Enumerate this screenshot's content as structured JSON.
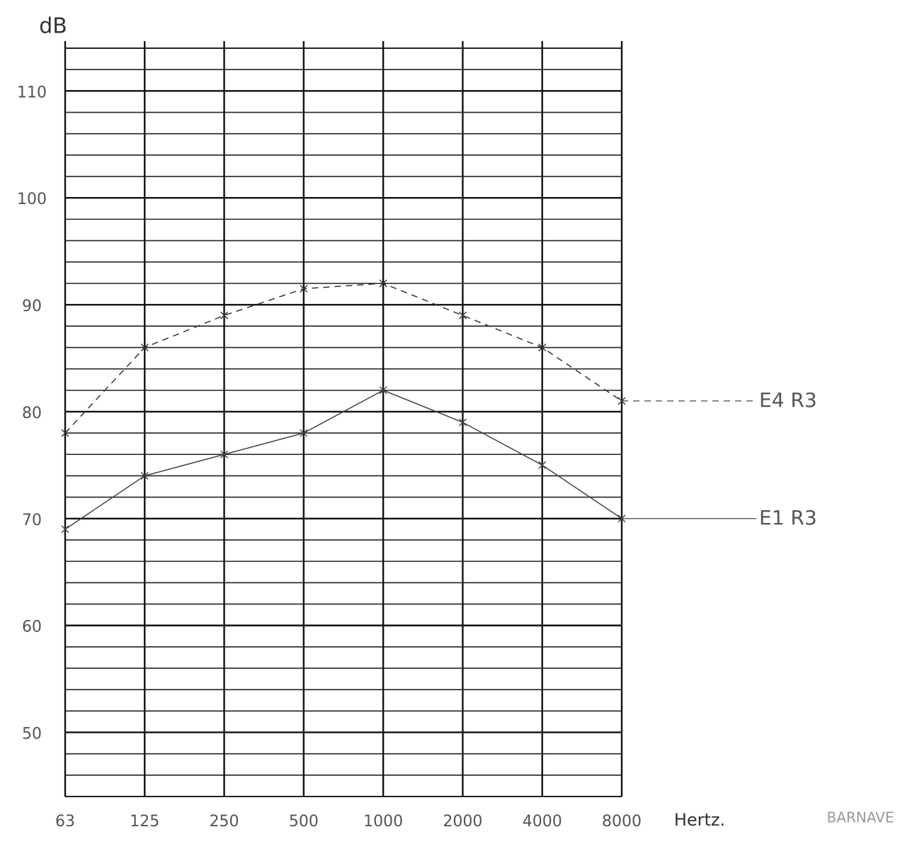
{
  "chart_data": {
    "type": "line",
    "y_label": "dB",
    "x_label": "Hertz.",
    "annotation": "BARNAVE",
    "categories": [
      "63",
      "125",
      "250",
      "500",
      "1000",
      "2000",
      "4000",
      "8000"
    ],
    "series": [
      {
        "name": "E4 R3",
        "color": "#333333",
        "dash": true,
        "values": [
          78,
          86,
          89,
          91.5,
          92,
          89,
          86,
          81
        ]
      },
      {
        "name": "E1 R3",
        "color": "#444444",
        "dash": false,
        "values": [
          69,
          74,
          76,
          78,
          82,
          79,
          75,
          70
        ]
      }
    ],
    "ylim": [
      44,
      114
    ],
    "yticks": [
      50,
      60,
      70,
      80,
      90,
      100,
      110
    ],
    "ygrid_step": 2,
    "grid": true
  }
}
